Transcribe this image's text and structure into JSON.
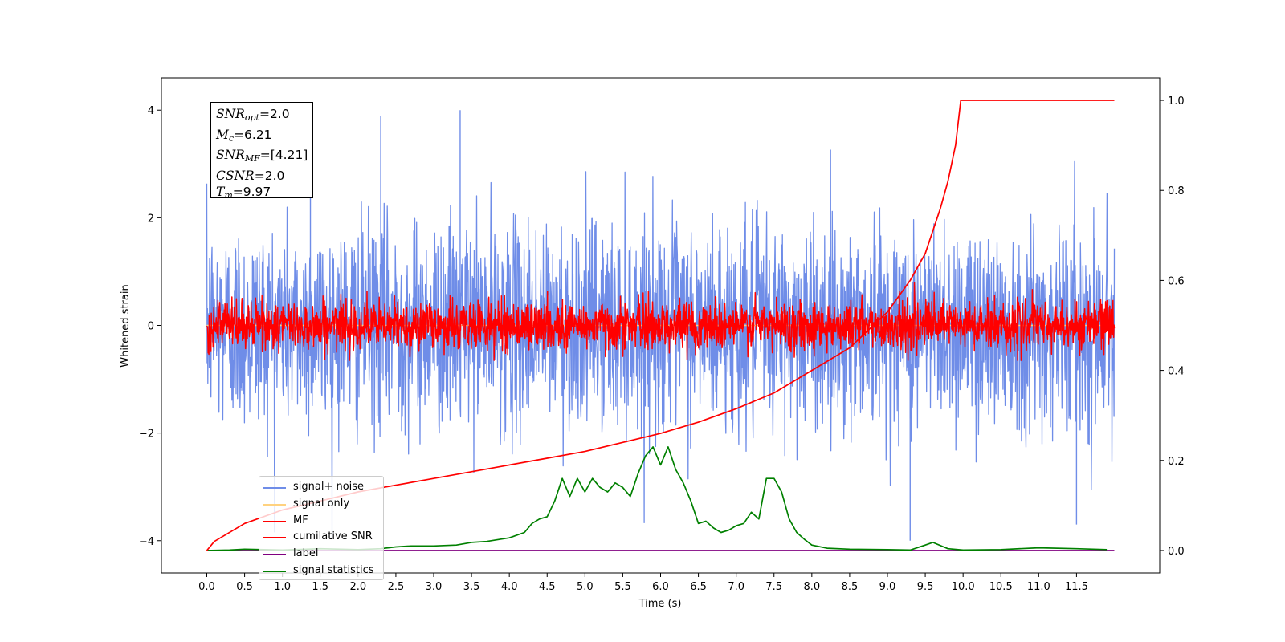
{
  "chart_data": {
    "type": "line",
    "title": "",
    "xlabel": "Time (s)",
    "ylabel": "Whitened strain",
    "xlim": [
      -0.6,
      12.6
    ],
    "ylim": [
      -4.6,
      4.6
    ],
    "y2lim": [
      -0.05,
      1.05
    ],
    "xticks": [
      "0.0",
      "0.5",
      "1.0",
      "1.5",
      "2.0",
      "2.5",
      "3.0",
      "3.5",
      "4.0",
      "4.5",
      "5.0",
      "5.5",
      "6.0",
      "6.5",
      "7.0",
      "7.5",
      "8.0",
      "8.5",
      "9.0",
      "9.5",
      "10.0",
      "10.5",
      "11.0",
      "11.5"
    ],
    "yticks": [
      "4",
      "2",
      "0",
      "−2",
      "−4"
    ],
    "y2ticks": [
      "1.0",
      "0.8",
      "0.6",
      "0.4",
      "0.2",
      "0.0"
    ],
    "grid": false,
    "legend_position": "lower-left",
    "noise": {
      "blue_center": 0.0,
      "blue_std": 0.95,
      "blue_peaks_approx": [
        4.15,
        -4.0
      ],
      "red_mf_center": 0.0,
      "red_mf_std": 0.22,
      "x_range": [
        0.0,
        12.0
      ]
    },
    "series": [
      {
        "name": "signal+ noise",
        "color": "#6f8de8",
        "axis": "left",
        "kind": "noise",
        "std": 0.95
      },
      {
        "name": "signal only",
        "color": "#ffd27f",
        "axis": "left",
        "kind": "flat",
        "values": [
          0,
          0
        ]
      },
      {
        "name": "MF",
        "color": "#ff0000",
        "axis": "left",
        "kind": "noise",
        "std": 0.22
      },
      {
        "name": "cumilative SNR",
        "color": "#ff0000",
        "axis": "right",
        "x": [
          0.0,
          0.1,
          0.5,
          1.0,
          1.5,
          2.0,
          2.5,
          3.0,
          3.5,
          4.0,
          4.5,
          5.0,
          5.5,
          6.0,
          6.5,
          7.0,
          7.5,
          8.0,
          8.5,
          9.0,
          9.3,
          9.5,
          9.7,
          9.8,
          9.9,
          9.97,
          10.0,
          11.0,
          12.0
        ],
        "y": [
          0.0,
          0.02,
          0.06,
          0.09,
          0.11,
          0.13,
          0.145,
          0.16,
          0.175,
          0.19,
          0.205,
          0.22,
          0.24,
          0.26,
          0.285,
          0.315,
          0.35,
          0.4,
          0.45,
          0.53,
          0.6,
          0.66,
          0.76,
          0.82,
          0.9,
          1.0,
          1.0,
          1.0,
          1.0
        ]
      },
      {
        "name": "label",
        "color": "#800080",
        "axis": "right",
        "x": [
          0.0,
          12.0
        ],
        "y": [
          0.0,
          0.0
        ]
      },
      {
        "name": "signal statistics",
        "color": "#008000",
        "axis": "right",
        "x": [
          0.0,
          0.3,
          0.5,
          1.0,
          1.5,
          2.0,
          2.3,
          2.5,
          2.7,
          3.0,
          3.3,
          3.5,
          3.7,
          4.0,
          4.2,
          4.3,
          4.4,
          4.5,
          4.6,
          4.7,
          4.8,
          4.9,
          5.0,
          5.1,
          5.2,
          5.3,
          5.4,
          5.5,
          5.6,
          5.7,
          5.8,
          5.9,
          6.0,
          6.1,
          6.2,
          6.3,
          6.4,
          6.5,
          6.6,
          6.7,
          6.8,
          6.9,
          7.0,
          7.1,
          7.2,
          7.3,
          7.4,
          7.5,
          7.6,
          7.7,
          7.8,
          7.9,
          8.0,
          8.2,
          8.5,
          9.0,
          9.3,
          9.5,
          9.6,
          9.8,
          10.0,
          10.5,
          11.0,
          11.5,
          11.9
        ],
        "y": [
          0.0,
          0.001,
          0.003,
          0.001,
          0.004,
          0.002,
          0.004,
          0.008,
          0.01,
          0.01,
          0.012,
          0.018,
          0.02,
          0.028,
          0.04,
          0.06,
          0.07,
          0.075,
          0.11,
          0.16,
          0.12,
          0.16,
          0.13,
          0.16,
          0.14,
          0.13,
          0.15,
          0.14,
          0.12,
          0.17,
          0.21,
          0.23,
          0.19,
          0.23,
          0.18,
          0.15,
          0.11,
          0.06,
          0.065,
          0.05,
          0.04,
          0.045,
          0.055,
          0.06,
          0.085,
          0.07,
          0.16,
          0.16,
          0.13,
          0.07,
          0.04,
          0.025,
          0.012,
          0.005,
          0.003,
          0.002,
          0.001,
          0.012,
          0.018,
          0.004,
          0.001,
          0.002,
          0.006,
          0.004,
          0.002
        ]
      }
    ],
    "annotation_box": {
      "lines": [
        {
          "name": "SNR",
          "sub": "opt",
          "value": "=2.0"
        },
        {
          "name": "M",
          "sub": "c",
          "value": "=6.21"
        },
        {
          "name": "SNR",
          "sub": "MF",
          "value": "=[4.21]"
        },
        {
          "name": "CSNR",
          "sub": "",
          "value": "=2.0"
        },
        {
          "name": "T",
          "sub": "m",
          "value": "=9.97"
        }
      ]
    }
  }
}
